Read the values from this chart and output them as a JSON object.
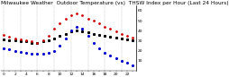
{
  "title": "Milwaukee Weather  Outdoor Temperature (vs)  THSW Index per Hour (Last 24 Hours)",
  "hours": [
    0,
    1,
    2,
    3,
    4,
    5,
    6,
    7,
    8,
    9,
    10,
    11,
    12,
    13,
    14,
    15,
    16,
    17,
    18,
    19,
    20,
    21,
    22,
    23
  ],
  "outdoor_temp": [
    36,
    34,
    32,
    31,
    30,
    29,
    28,
    30,
    35,
    42,
    47,
    52,
    55,
    57,
    55,
    52,
    50,
    47,
    44,
    42,
    39,
    37,
    35,
    33
  ],
  "thsw_index": [
    22,
    21,
    20,
    19,
    18,
    17,
    17,
    17,
    18,
    20,
    25,
    32,
    40,
    44,
    42,
    35,
    28,
    22,
    18,
    15,
    12,
    10,
    8,
    5
  ],
  "black_series": [
    31,
    30,
    30,
    29,
    29,
    28,
    28,
    29,
    30,
    32,
    35,
    37,
    39,
    40,
    39,
    38,
    37,
    36,
    35,
    34,
    33,
    32,
    31,
    30
  ],
  "ylim": [
    0,
    65
  ],
  "yticks": [
    10,
    20,
    30,
    40,
    50,
    60
  ],
  "bg_color": "#ffffff",
  "temp_color": "#cc0000",
  "thsw_color": "#0000cc",
  "black_color": "#000000",
  "grid_color": "#888888",
  "title_fontsize": 4.2,
  "tick_fontsize": 3.2,
  "vgrid_every": 3
}
